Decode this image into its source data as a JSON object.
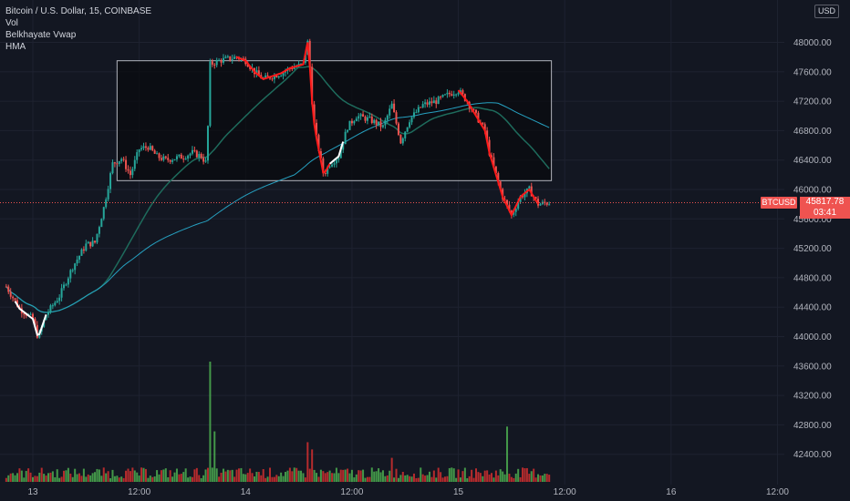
{
  "legend": {
    "symbol_line": "Bitcoin / U.S. Dollar, 15, COINBASE",
    "indicators": [
      "Vol",
      "Belkhayate Vwap",
      "HMA"
    ]
  },
  "price_axis": {
    "currency": "USD",
    "ticks": [
      {
        "value": 48000,
        "label": "48000.00"
      },
      {
        "value": 47600,
        "label": "47600.00"
      },
      {
        "value": 47200,
        "label": "47200.00"
      },
      {
        "value": 46800,
        "label": "46800.00"
      },
      {
        "value": 46400,
        "label": "46400.00"
      },
      {
        "value": 46000,
        "label": "46000.00"
      },
      {
        "value": 45600,
        "label": "45600.00"
      },
      {
        "value": 45200,
        "label": "45200.00"
      },
      {
        "value": 44800,
        "label": "44800.00"
      },
      {
        "value": 44400,
        "label": "44400.00"
      },
      {
        "value": 44000,
        "label": "44000.00"
      },
      {
        "value": 43600,
        "label": "43600.00"
      },
      {
        "value": 43200,
        "label": "43200.00"
      },
      {
        "value": 42800,
        "label": "42800.00"
      },
      {
        "value": 42400,
        "label": "42400.00"
      }
    ]
  },
  "time_axis": {
    "ticks": [
      {
        "hours": 0,
        "label": "13"
      },
      {
        "hours": 12,
        "label": "12:00"
      },
      {
        "hours": 24,
        "label": "14"
      },
      {
        "hours": 36,
        "label": "12:00"
      },
      {
        "hours": 48,
        "label": "15"
      },
      {
        "hours": 60,
        "label": "12:00"
      },
      {
        "hours": 72,
        "label": "16"
      },
      {
        "hours": 84,
        "label": "12:00"
      }
    ]
  },
  "last_price": {
    "symbol": "BTCUSD",
    "price": "45817.78",
    "countdown": "03:41",
    "value": 45817.78
  },
  "colors": {
    "background": "#131722",
    "grid": "#1e2230",
    "up": "#26a69a",
    "down": "#ef5350",
    "vol_up": "#4caf50",
    "vol_down": "#d32f2f",
    "hma_up": "#ffffff",
    "hma_down": "#ff1a1a",
    "vwap_fast": "#1e6b5c",
    "vwap_slow": "#26a0c0",
    "box_border": "#b2b5be",
    "box_fill": "#0a0b0f"
  },
  "chart_data": {
    "type": "candlestick",
    "interval_minutes": 15,
    "x_unit": "hours from day 13 00:00",
    "price_range": [
      42400,
      48100
    ],
    "x_range": [
      -3,
      88
    ],
    "rectangle": {
      "x0": 9.5,
      "x1": 58.5,
      "y0": 46120,
      "y1": 47750
    },
    "anchors": [
      {
        "t": -3,
        "p": 44680
      },
      {
        "t": -1.5,
        "p": 44380
      },
      {
        "t": 0,
        "p": 44240
      },
      {
        "t": 0.6,
        "p": 43980
      },
      {
        "t": 1.5,
        "p": 44300
      },
      {
        "t": 3,
        "p": 44550
      },
      {
        "t": 4.5,
        "p": 44950
      },
      {
        "t": 6,
        "p": 45250
      },
      {
        "t": 7,
        "p": 45280
      },
      {
        "t": 8,
        "p": 45750
      },
      {
        "t": 9,
        "p": 46350
      },
      {
        "t": 10,
        "p": 46420
      },
      {
        "t": 11,
        "p": 46200
      },
      {
        "t": 12,
        "p": 46550
      },
      {
        "t": 13,
        "p": 46580
      },
      {
        "t": 14,
        "p": 46450
      },
      {
        "t": 15,
        "p": 46400
      },
      {
        "t": 17,
        "p": 46450
      },
      {
        "t": 18,
        "p": 46500
      },
      {
        "t": 19,
        "p": 46450
      },
      {
        "t": 19.6,
        "p": 46350
      },
      {
        "t": 20,
        "p": 47700
      },
      {
        "t": 21,
        "p": 47750
      },
      {
        "t": 23,
        "p": 47800
      },
      {
        "t": 24,
        "p": 47750
      },
      {
        "t": 25,
        "p": 47600
      },
      {
        "t": 26,
        "p": 47500
      },
      {
        "t": 28,
        "p": 47580
      },
      {
        "t": 29,
        "p": 47650
      },
      {
        "t": 30.5,
        "p": 47700
      },
      {
        "t": 31,
        "p": 48000
      },
      {
        "t": 31.3,
        "p": 47600
      },
      {
        "t": 31.6,
        "p": 47000
      },
      {
        "t": 32,
        "p": 46700
      },
      {
        "t": 32.8,
        "p": 46200
      },
      {
        "t": 33.5,
        "p": 46350
      },
      {
        "t": 34.5,
        "p": 46450
      },
      {
        "t": 35.5,
        "p": 46850
      },
      {
        "t": 36.5,
        "p": 47000
      },
      {
        "t": 38,
        "p": 46950
      },
      {
        "t": 39.5,
        "p": 46850
      },
      {
        "t": 40.5,
        "p": 47150
      },
      {
        "t": 41.5,
        "p": 46650
      },
      {
        "t": 42.5,
        "p": 46950
      },
      {
        "t": 44,
        "p": 47150
      },
      {
        "t": 45.5,
        "p": 47200
      },
      {
        "t": 47,
        "p": 47300
      },
      {
        "t": 48,
        "p": 47350
      },
      {
        "t": 49,
        "p": 47200
      },
      {
        "t": 50,
        "p": 47000
      },
      {
        "t": 51,
        "p": 46800
      },
      {
        "t": 51.5,
        "p": 46500
      },
      {
        "t": 52,
        "p": 46300
      },
      {
        "t": 53,
        "p": 45900
      },
      {
        "t": 54,
        "p": 45650
      },
      {
        "t": 55,
        "p": 45900
      },
      {
        "t": 56,
        "p": 46000
      },
      {
        "t": 57,
        "p": 45800
      },
      {
        "t": 58.3,
        "p": 45820
      }
    ],
    "volume_spikes": [
      {
        "t": 20,
        "v": 1.0
      },
      {
        "t": 20.5,
        "v": 0.42
      },
      {
        "t": 31,
        "v": 0.33
      },
      {
        "t": 31.4,
        "v": 0.27
      },
      {
        "t": 53.5,
        "v": 0.46
      },
      {
        "t": 40.5,
        "v": 0.2
      }
    ],
    "hma_segments": [
      {
        "from": -2,
        "to": 1.5,
        "dir": "up"
      },
      {
        "from": 23,
        "to": 31,
        "dir": "down"
      },
      {
        "from": 31,
        "to": 33.5,
        "dir": "down"
      },
      {
        "from": 33.5,
        "to": 35,
        "dir": "up"
      },
      {
        "from": 48,
        "to": 57,
        "dir": "down"
      }
    ]
  }
}
